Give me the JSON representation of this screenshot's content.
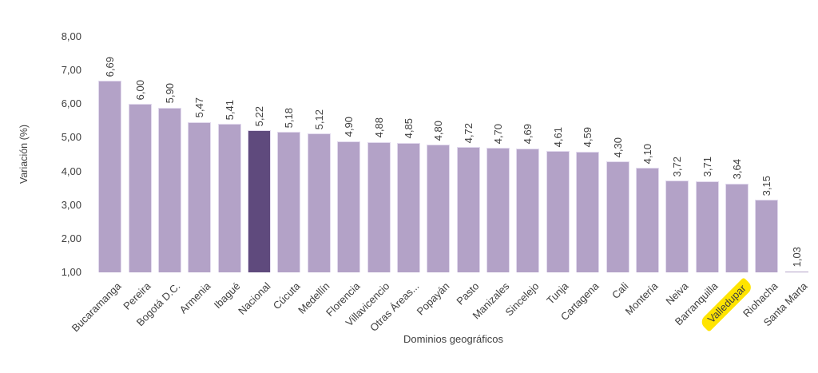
{
  "chart_data": {
    "type": "bar",
    "title": "",
    "xlabel": "Dominios geográficos",
    "ylabel": "Variación (%)",
    "categories": [
      "Bucaramanga",
      "Pereira",
      "Bogotá D.C.",
      "Armenia",
      "Ibagué",
      "Nacional",
      "Cúcuta",
      "Medellín",
      "Florencia",
      "Villavicencio",
      "Otras Áreas...",
      "Popayán",
      "Pasto",
      "Manizales",
      "Sincelejo",
      "Tunja",
      "Cartagena",
      "Cali",
      "Montería",
      "Neiva",
      "Barranquilla",
      "Valledupar",
      "Riohacha",
      "Santa Marta"
    ],
    "values": [
      6.69,
      6.0,
      5.9,
      5.47,
      5.41,
      5.22,
      5.18,
      5.12,
      4.9,
      4.88,
      4.85,
      4.8,
      4.72,
      4.7,
      4.69,
      4.61,
      4.59,
      4.3,
      4.1,
      3.72,
      3.71,
      3.64,
      3.15,
      1.03
    ],
    "value_labels": [
      "6,69",
      "6,00",
      "5,90",
      "5,47",
      "5,41",
      "5,22",
      "5,18",
      "5,12",
      "4,90",
      "4,88",
      "4,85",
      "4,80",
      "4,72",
      "4,70",
      "4,69",
      "4,61",
      "4,59",
      "4,30",
      "4,10",
      "3,72",
      "3,71",
      "3,64",
      "3,15",
      "1,03"
    ],
    "y_ticks": [
      "8,00",
      "7,00",
      "6,00",
      "5,00",
      "4,00",
      "3,00",
      "2,00",
      "1,00"
    ],
    "ylim": [
      1.0,
      8.0
    ],
    "grid": false,
    "legend": false,
    "bar_color": "#b3a2c7",
    "emphasized_category": "Nacional",
    "emphasized_color": "#5f4a7d",
    "highlighted_category": "Valledupar",
    "highlight_color": "#ffe400",
    "text_color": "#3f3f3f"
  }
}
